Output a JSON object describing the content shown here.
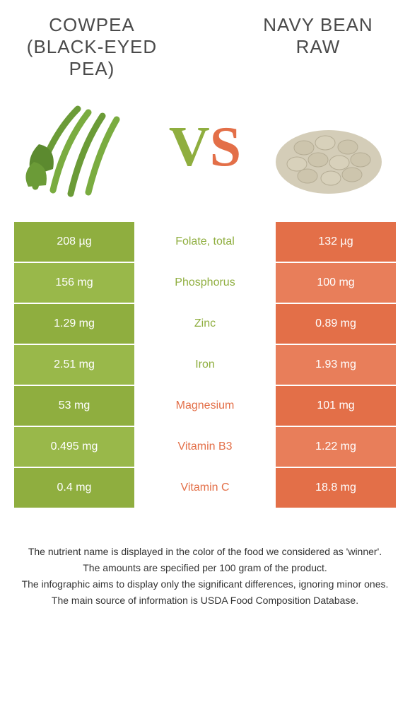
{
  "colors": {
    "green_a": "#8fae3f",
    "green_b": "#99b84a",
    "orange_a": "#e36f48",
    "orange_b": "#e87e5a",
    "text_dark": "#4a4a4a"
  },
  "left_food": {
    "title": "COWPEA (BLACK-EYED PEA)"
  },
  "right_food": {
    "title": "NAVY BEAN RAW"
  },
  "vs": {
    "v": "V",
    "s": "S"
  },
  "rows": [
    {
      "nutrient": "Folate, total",
      "left": "208 µg",
      "right": "132 µg",
      "winner": "left"
    },
    {
      "nutrient": "Phosphorus",
      "left": "156 mg",
      "right": "100 mg",
      "winner": "left"
    },
    {
      "nutrient": "Zinc",
      "left": "1.29 mg",
      "right": "0.89 mg",
      "winner": "left"
    },
    {
      "nutrient": "Iron",
      "left": "2.51 mg",
      "right": "1.93 mg",
      "winner": "left"
    },
    {
      "nutrient": "Magnesium",
      "left": "53 mg",
      "right": "101 mg",
      "winner": "right"
    },
    {
      "nutrient": "Vitamin B3",
      "left": "0.495 mg",
      "right": "1.22 mg",
      "winner": "right"
    },
    {
      "nutrient": "Vitamin C",
      "left": "0.4 mg",
      "right": "18.8 mg",
      "winner": "right"
    }
  ],
  "footer": {
    "line1": "The nutrient name is displayed in the color of the food we considered as 'winner'.",
    "line2": "The amounts are specified per 100 gram of the product.",
    "line3": "The infographic aims to display only the significant differences, ignoring minor ones.",
    "line4": "The main source of information is USDA Food Composition Database."
  }
}
